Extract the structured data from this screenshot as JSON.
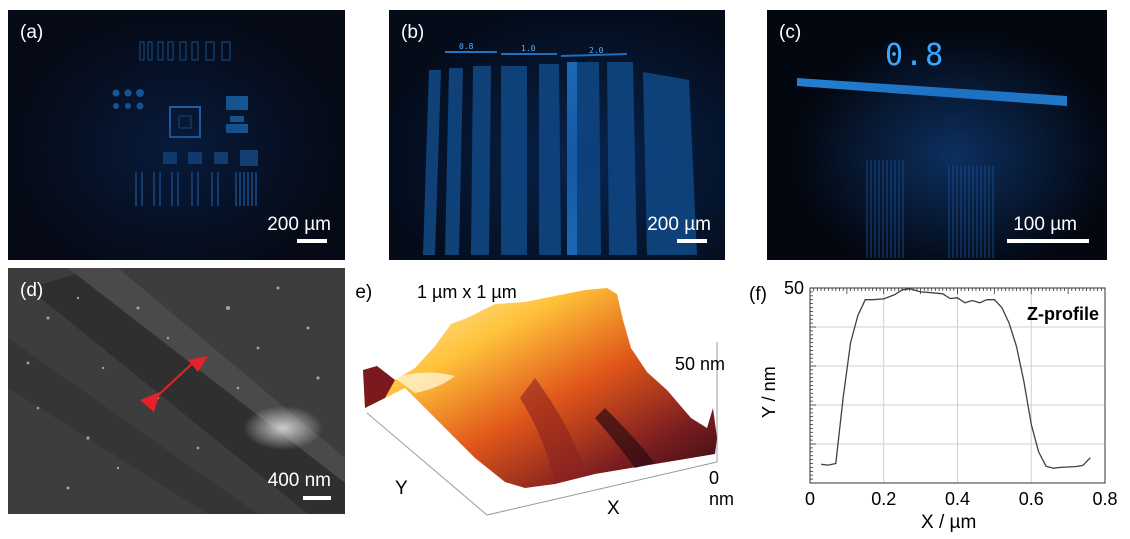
{
  "panels": {
    "a": {
      "label": "(a)",
      "scale_text": "200 µm"
    },
    "b": {
      "label": "(b)",
      "scale_text": "200 µm",
      "marks": [
        "0.8",
        "1.0",
        "2.0"
      ]
    },
    "c": {
      "label": "(c)",
      "scale_text": "100 µm",
      "mark": "0.8"
    },
    "d": {
      "label": "(d)",
      "scale_text": "400 nm"
    },
    "e": {
      "label": "(e)",
      "size_text": "1 µm x 1 µm",
      "z_top": "50 nm",
      "z_bottom": "0 nm",
      "x_axis": "X",
      "y_axis": "Y"
    },
    "f": {
      "label": "(f)"
    }
  },
  "colors": {
    "pattern_blue": "#1f7fd0",
    "bright_blue": "#29a6ff",
    "arrow_red": "#e8202a",
    "profile_line": "#404040",
    "grid": "#cfcfcf"
  },
  "chart_data": {
    "type": "line",
    "title": "Z-profile",
    "xlabel": "X / µm",
    "ylabel": "Y / nm",
    "xlim": [
      0,
      0.8
    ],
    "ylim": [
      0,
      50
    ],
    "xticks": [
      "0",
      "0.2",
      "0.4",
      "0.6",
      "0.8"
    ],
    "yticks": [
      "50"
    ],
    "grid": true,
    "x": [
      0.03,
      0.05,
      0.07,
      0.09,
      0.11,
      0.13,
      0.15,
      0.17,
      0.2,
      0.23,
      0.25,
      0.27,
      0.3,
      0.33,
      0.36,
      0.38,
      0.4,
      0.42,
      0.44,
      0.46,
      0.48,
      0.5,
      0.52,
      0.54,
      0.56,
      0.58,
      0.6,
      0.62,
      0.64,
      0.66,
      0.68,
      0.7,
      0.72,
      0.74,
      0.76
    ],
    "y": [
      4.8,
      4.6,
      5.0,
      22,
      36,
      43,
      47,
      47,
      47.2,
      48.3,
      49.5,
      49.8,
      49,
      48.8,
      48.5,
      47.3,
      47.5,
      46.2,
      46.8,
      46.2,
      47,
      47,
      45,
      41,
      35,
      26,
      15,
      8,
      4.3,
      3.8,
      4.0,
      4.1,
      4.2,
      4.5,
      6.5
    ]
  }
}
